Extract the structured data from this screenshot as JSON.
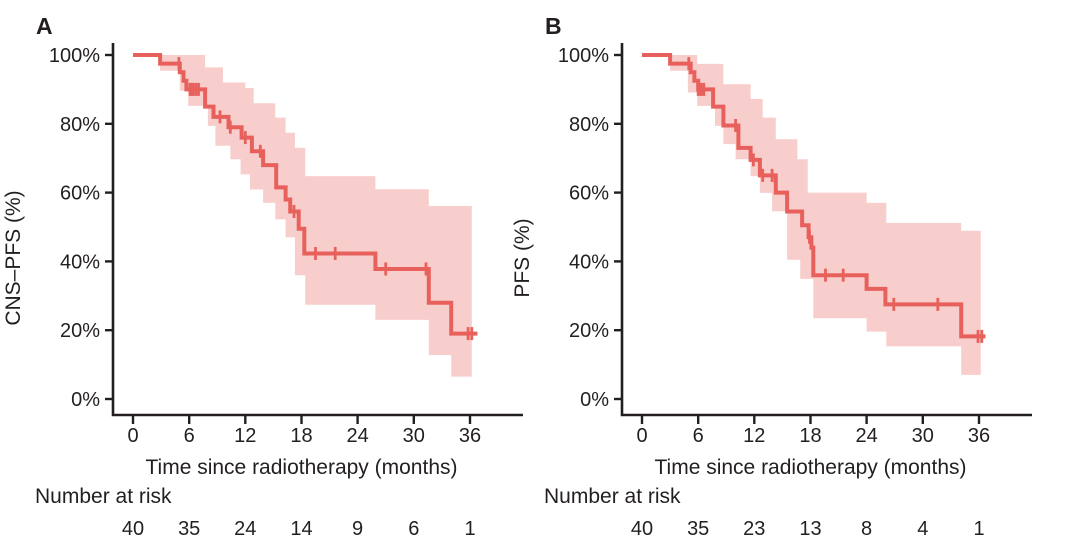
{
  "figure": {
    "description": "Kaplan-Meier survival curves with 95% confidence bands",
    "background_color": "#ffffff",
    "text_color": "#231f20",
    "axis_color": "#231f20",
    "curve_color": "#e8605c",
    "band_color": "#f8cecc"
  },
  "chart_data": [
    {
      "type": "line",
      "subtype": "kaplan-meier-step",
      "panel_label": "A",
      "ylabel": "CNS–PFS (%)",
      "xlabel": "Time since radiotherapy (months)",
      "xticks": [
        0,
        6,
        12,
        18,
        24,
        30,
        36
      ],
      "ytick_values": [
        100,
        80,
        60,
        40,
        20,
        0
      ],
      "ytick_labels": [
        "100%",
        "80%",
        "60%",
        "40%",
        "20%",
        "0%"
      ],
      "xlim": [
        0,
        36
      ],
      "ylim": [
        0,
        100
      ],
      "grid": false,
      "legend": "none",
      "survival_steps": [
        [
          0,
          100
        ],
        [
          2.9,
          97.5
        ],
        [
          5.0,
          95
        ],
        [
          5.4,
          92.5
        ],
        [
          5.7,
          90
        ],
        [
          7.7,
          85
        ],
        [
          8.6,
          82
        ],
        [
          10.2,
          79
        ],
        [
          11.6,
          76
        ],
        [
          12.7,
          72
        ],
        [
          13.9,
          68
        ],
        [
          15.3,
          61.5
        ],
        [
          16.3,
          58
        ],
        [
          16.8,
          54.5
        ],
        [
          17.7,
          49.5
        ],
        [
          18.3,
          42.3
        ],
        [
          25.9,
          37.8
        ],
        [
          31.6,
          28
        ],
        [
          34.0,
          19
        ]
      ],
      "curve_end": 36.8,
      "censor_marks": [
        [
          4.9,
          97.5
        ],
        [
          6.1,
          90
        ],
        [
          6.4,
          90
        ],
        [
          6.7,
          90
        ],
        [
          7.0,
          90
        ],
        [
          9.3,
          82
        ],
        [
          10.4,
          79
        ],
        [
          12.0,
          76
        ],
        [
          13.6,
          72
        ],
        [
          17.2,
          54.5
        ],
        [
          19.5,
          42.3
        ],
        [
          21.6,
          42.3
        ],
        [
          27.0,
          37.8
        ],
        [
          31.3,
          37.8
        ],
        [
          35.8,
          19
        ],
        [
          36.2,
          19
        ]
      ],
      "confidence_band": [
        [
          2.9,
          95.4,
          100
        ],
        [
          5.0,
          89.6,
          100
        ],
        [
          5.9,
          85.2,
          100
        ],
        [
          7.7,
          85.2,
          96.4
        ],
        [
          8.0,
          79.4,
          96.4
        ],
        [
          8.8,
          73.6,
          96.4
        ],
        [
          9.6,
          73.6,
          92.0
        ],
        [
          10.4,
          69.7,
          92.0
        ],
        [
          11.5,
          65.3,
          92.0
        ],
        [
          12.0,
          65.3,
          90.4
        ],
        [
          12.5,
          60.9,
          90.4
        ],
        [
          12.9,
          60.9,
          86.0
        ],
        [
          13.9,
          57.0,
          86.0
        ],
        [
          15.2,
          52.2,
          81.8
        ],
        [
          16.3,
          47.0,
          77.4
        ],
        [
          17.3,
          36.0,
          73.0
        ],
        [
          18.4,
          27.4,
          64.8
        ],
        [
          25.9,
          23.0,
          61.0
        ],
        [
          31.6,
          12.8,
          56.1
        ],
        [
          34.0,
          6.5,
          56.1
        ]
      ],
      "band_end": 36.2,
      "number_at_risk": {
        "label": "Number at risk",
        "times": [
          0,
          6,
          12,
          18,
          24,
          30,
          36
        ],
        "values": [
          40,
          35,
          24,
          14,
          9,
          6,
          1
        ]
      }
    },
    {
      "type": "line",
      "subtype": "kaplan-meier-step",
      "panel_label": "B",
      "ylabel": "PFS (%)",
      "xlabel": "Time since radiotherapy (months)",
      "xticks": [
        0,
        6,
        12,
        18,
        24,
        30,
        36
      ],
      "ytick_values": [
        100,
        80,
        60,
        40,
        20,
        0
      ],
      "ytick_labels": [
        "100%",
        "80%",
        "60%",
        "40%",
        "20%",
        "0%"
      ],
      "xlim": [
        0,
        36
      ],
      "ylim": [
        0,
        100
      ],
      "grid": false,
      "legend": "none",
      "survival_steps": [
        [
          0,
          100
        ],
        [
          3.0,
          97.5
        ],
        [
          5.2,
          95
        ],
        [
          5.6,
          92.5
        ],
        [
          6.0,
          90
        ],
        [
          7.6,
          85
        ],
        [
          8.7,
          79.5
        ],
        [
          10.3,
          73
        ],
        [
          11.6,
          69.5
        ],
        [
          12.6,
          65
        ],
        [
          14.3,
          60
        ],
        [
          15.5,
          54.5
        ],
        [
          17.1,
          50.5
        ],
        [
          17.8,
          47
        ],
        [
          18.1,
          44
        ],
        [
          18.3,
          36
        ],
        [
          24.0,
          32
        ],
        [
          26.0,
          27.5
        ],
        [
          34.1,
          18.2
        ]
      ],
      "curve_end": 36.7,
      "censor_marks": [
        [
          5.0,
          97.5
        ],
        [
          6.0,
          90
        ],
        [
          6.3,
          90
        ],
        [
          6.6,
          90
        ],
        [
          10.0,
          79.5
        ],
        [
          11.9,
          69.5
        ],
        [
          12.9,
          65
        ],
        [
          13.9,
          65
        ],
        [
          17.9,
          47
        ],
        [
          19.6,
          36
        ],
        [
          21.5,
          36
        ],
        [
          26.9,
          27.5
        ],
        [
          31.6,
          27.5
        ],
        [
          35.9,
          18.2
        ],
        [
          36.3,
          18.2
        ]
      ],
      "confidence_band": [
        [
          3.0,
          95.4,
          100
        ],
        [
          4.9,
          89.1,
          100
        ],
        [
          5.9,
          85.2,
          97.4
        ],
        [
          7.8,
          79.4,
          97.4
        ],
        [
          8.7,
          74.1,
          91.5
        ],
        [
          10.0,
          69.7,
          91.5
        ],
        [
          11.6,
          64.8,
          87.2
        ],
        [
          12.6,
          59.9,
          87.2
        ],
        [
          12.9,
          59.9,
          81.8
        ],
        [
          13.9,
          54.6,
          81.8
        ],
        [
          14.3,
          54.6,
          75.5
        ],
        [
          15.5,
          40.5,
          75.5
        ],
        [
          16.6,
          40.5,
          69.7
        ],
        [
          16.9,
          34.9,
          69.7
        ],
        [
          17.7,
          34.9,
          60.0
        ],
        [
          18.3,
          23.5,
          60.0
        ],
        [
          24.0,
          19.6,
          57.0
        ],
        [
          26.1,
          15.3,
          51.2
        ],
        [
          34.1,
          7.0,
          48.9
        ]
      ],
      "band_end": 36.2,
      "number_at_risk": {
        "label": "Number at risk",
        "times": [
          0,
          6,
          12,
          18,
          24,
          30,
          36
        ],
        "values": [
          40,
          35,
          23,
          13,
          8,
          4,
          1
        ]
      }
    }
  ]
}
